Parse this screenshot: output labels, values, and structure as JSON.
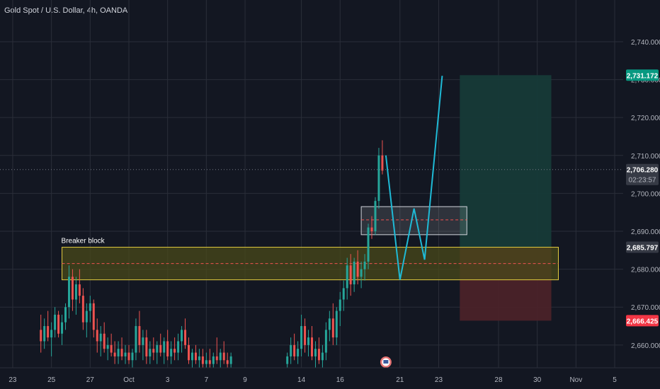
{
  "header": {
    "title": "Gold Spot / U.S. Dollar, 4h, OANDA"
  },
  "colors": {
    "background": "#131722",
    "bull": "#26a69a",
    "bear": "#ef5350",
    "grid": "#2a2e39",
    "projection": "#1fbad6",
    "target_zone": "#163a38",
    "stop_zone": "#4a2229",
    "breaker_zone": "#4a4a1a",
    "breaker_border": "#e3cc3f"
  },
  "chart_data": {
    "type": "candlestick",
    "title": "Gold Spot / U.S. Dollar, 4h, OANDA",
    "y_axis": {
      "ylim": [
        2654,
        2751
      ],
      "ticks": [
        2740,
        2730,
        2720,
        2710,
        2700,
        2690,
        2680,
        2670,
        2660
      ],
      "tick_labels": [
        "2,740.000",
        "2,730.000",
        "2,720.000",
        "2,710.000",
        "2,700.000",
        "2,690.000",
        "2,680.000",
        "2,670.000",
        "2,660.000"
      ]
    },
    "x_axis": {
      "xlim": [
        0,
        174
      ],
      "ticks": [
        {
          "label": "23",
          "x": 2
        },
        {
          "label": "25",
          "x": 13
        },
        {
          "label": "27",
          "x": 24
        },
        {
          "label": "Oct",
          "x": 35
        },
        {
          "label": "3",
          "x": 46
        },
        {
          "label": "7",
          "x": 57
        },
        {
          "label": "9",
          "x": 68
        },
        {
          "label": "14",
          "x": 84
        },
        {
          "label": "16",
          "x": 95
        },
        {
          "label": "21",
          "x": 112
        },
        {
          "label": "23",
          "x": 123
        },
        {
          "label": "28",
          "x": 140
        },
        {
          "label": "30",
          "x": 151
        },
        {
          "label": "Nov",
          "x": 162
        },
        {
          "label": "5",
          "x": 173
        }
      ]
    },
    "candles": [
      [
        10,
        2664,
        2668,
        2658,
        2661
      ],
      [
        11,
        2661,
        2667,
        2659,
        2665
      ],
      [
        12,
        2665,
        2669,
        2661,
        2662
      ],
      [
        13,
        2662,
        2666,
        2657,
        2664
      ],
      [
        14,
        2664,
        2670,
        2662,
        2668
      ],
      [
        15,
        2668,
        2669,
        2662,
        2663
      ],
      [
        16,
        2663,
        2668,
        2660,
        2666
      ],
      [
        17,
        2666,
        2671,
        2664,
        2670
      ],
      [
        18,
        2670,
        2681,
        2667,
        2678
      ],
      [
        19,
        2678,
        2680,
        2669,
        2672
      ],
      [
        20,
        2672,
        2678,
        2668,
        2676
      ],
      [
        21,
        2676,
        2680,
        2671,
        2673
      ],
      [
        22,
        2673,
        2675,
        2664,
        2666
      ],
      [
        23,
        2666,
        2671,
        2662,
        2669
      ],
      [
        24,
        2669,
        2673,
        2666,
        2671
      ],
      [
        25,
        2671,
        2672,
        2662,
        2664
      ],
      [
        26,
        2664,
        2667,
        2658,
        2661
      ],
      [
        27,
        2661,
        2665,
        2657,
        2663
      ],
      [
        28,
        2663,
        2666,
        2658,
        2659
      ],
      [
        29,
        2659,
        2662,
        2656,
        2660
      ],
      [
        30,
        2660,
        2663,
        2657,
        2658
      ],
      [
        31,
        2658,
        2661,
        2655,
        2657
      ],
      [
        32,
        2657,
        2661,
        2655,
        2659
      ],
      [
        33,
        2659,
        2662,
        2656,
        2657
      ],
      [
        34,
        2657,
        2660,
        2655,
        2658
      ],
      [
        35,
        2658,
        2660,
        2655,
        2656
      ],
      [
        36,
        2656,
        2659,
        2654,
        2658
      ],
      [
        37,
        2658,
        2667,
        2656,
        2665
      ],
      [
        38,
        2665,
        2669,
        2658,
        2660
      ],
      [
        39,
        2660,
        2664,
        2656,
        2662
      ],
      [
        40,
        2662,
        2664,
        2655,
        2657
      ],
      [
        41,
        2657,
        2661,
        2655,
        2659
      ],
      [
        42,
        2659,
        2662,
        2656,
        2658
      ],
      [
        43,
        2658,
        2661,
        2655,
        2660
      ],
      [
        44,
        2660,
        2663,
        2657,
        2658
      ],
      [
        45,
        2658,
        2662,
        2655,
        2661
      ],
      [
        46,
        2661,
        2664,
        2656,
        2657
      ],
      [
        47,
        2657,
        2661,
        2655,
        2659
      ],
      [
        48,
        2659,
        2662,
        2656,
        2658
      ],
      [
        49,
        2658,
        2663,
        2656,
        2661
      ],
      [
        50,
        2661,
        2665,
        2658,
        2664
      ],
      [
        51,
        2664,
        2667,
        2659,
        2660
      ],
      [
        52,
        2660,
        2662,
        2655,
        2656
      ],
      [
        53,
        2656,
        2659,
        2654,
        2658
      ],
      [
        54,
        2658,
        2660,
        2655,
        2656
      ],
      [
        55,
        2656,
        2659,
        2654,
        2657
      ],
      [
        56,
        2657,
        2659,
        2654,
        2655
      ],
      [
        57,
        2655,
        2658,
        2653,
        2656
      ],
      [
        58,
        2656,
        2659,
        2654,
        2655
      ],
      [
        59,
        2655,
        2658,
        2653,
        2657
      ],
      [
        60,
        2657,
        2662,
        2655,
        2656
      ],
      [
        61,
        2656,
        2659,
        2654,
        2658
      ],
      [
        62,
        2658,
        2661,
        2655,
        2656
      ],
      [
        63,
        2656,
        2658,
        2653,
        2655
      ],
      [
        64,
        2655,
        2658,
        2653,
        2657
      ],
      [
        80,
        2655,
        2658,
        2653,
        2657
      ],
      [
        81,
        2657,
        2662,
        2655,
        2660
      ],
      [
        82,
        2660,
        2663,
        2656,
        2657
      ],
      [
        83,
        2657,
        2661,
        2655,
        2659
      ],
      [
        84,
        2659,
        2668,
        2657,
        2665
      ],
      [
        85,
        2665,
        2667,
        2658,
        2660
      ],
      [
        86,
        2660,
        2664,
        2657,
        2662
      ],
      [
        87,
        2662,
        2665,
        2656,
        2657
      ],
      [
        88,
        2657,
        2661,
        2654,
        2659
      ],
      [
        89,
        2659,
        2662,
        2655,
        2656
      ],
      [
        90,
        2656,
        2660,
        2654,
        2658
      ],
      [
        91,
        2658,
        2666,
        2656,
        2664
      ],
      [
        92,
        2664,
        2669,
        2661,
        2667
      ],
      [
        93,
        2667,
        2671,
        2660,
        2662
      ],
      [
        94,
        2662,
        2670,
        2660,
        2669
      ],
      [
        95,
        2669,
        2674,
        2665,
        2672
      ],
      [
        96,
        2672,
        2677,
        2669,
        2675
      ],
      [
        97,
        2675,
        2683,
        2672,
        2681
      ],
      [
        98,
        2681,
        2684,
        2673,
        2676
      ],
      [
        99,
        2676,
        2683,
        2674,
        2682
      ],
      [
        100,
        2682,
        2685,
        2676,
        2678
      ],
      [
        101,
        2678,
        2682,
        2675,
        2680
      ],
      [
        102,
        2680,
        2684,
        2677,
        2682
      ],
      [
        103,
        2682,
        2692,
        2680,
        2691
      ],
      [
        104,
        2691,
        2694,
        2688,
        2690
      ],
      [
        105,
        2690,
        2699,
        2689,
        2698
      ],
      [
        106,
        2698,
        2712,
        2696,
        2710
      ],
      [
        107,
        2710,
        2714,
        2705,
        2706
      ]
    ],
    "last_price": 2706.28,
    "countdown": "02:23:57",
    "price_tags": [
      {
        "label": "2,731.172",
        "value": 2731.172,
        "color": "#089981"
      },
      {
        "label": "2,685.797",
        "value": 2685.797,
        "color": "#363a45"
      },
      {
        "label": "2,666.425",
        "value": 2666.425,
        "color": "#f23645"
      }
    ],
    "current_price_label": "2,706.280",
    "annotations": {
      "breaker_block": {
        "label": "Breaker block",
        "x0": 16,
        "x1": 157,
        "y_high": 2685.797,
        "y_low": 2677.2,
        "mid": 2681.5
      },
      "order_block": {
        "x0": 101,
        "x1": 131,
        "y_high": 2696.5,
        "y_low": 2689.1,
        "mid": 2693
      },
      "target_zone": {
        "x0": 129,
        "x1": 155,
        "y_high": 2731.172,
        "y_low": 2685.797
      },
      "stop_zone": {
        "x0": 129,
        "x1": 155,
        "y_high": 2685.797,
        "y_low": 2666.425
      },
      "projection_path": [
        [
          108,
          2710
        ],
        [
          112,
          2677.2
        ],
        [
          116,
          2696
        ],
        [
          119,
          2682.5
        ],
        [
          124,
          2731
        ]
      ]
    }
  }
}
